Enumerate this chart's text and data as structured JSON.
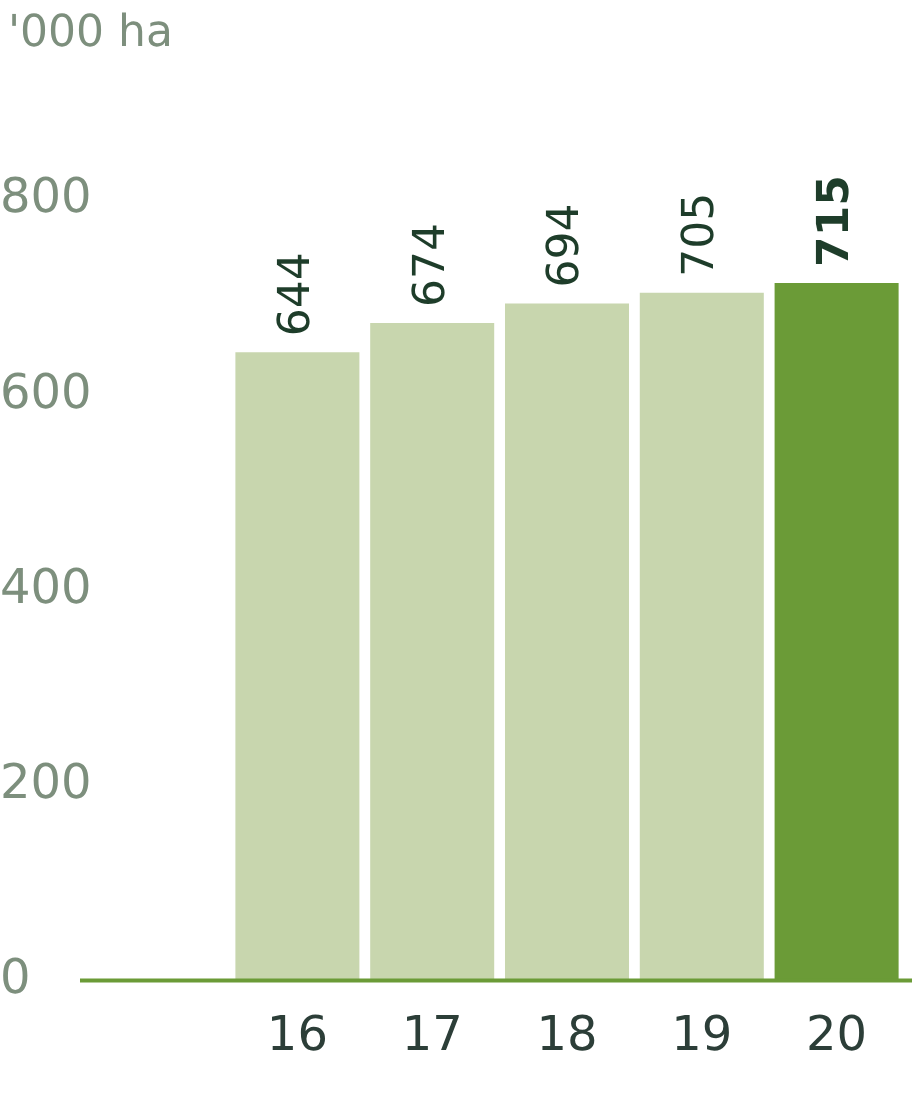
{
  "chart_data": {
    "type": "bar",
    "ylabel": "'000 ha",
    "categories": [
      "16",
      "17",
      "18",
      "19",
      "20"
    ],
    "values": [
      644,
      674,
      694,
      705,
      715
    ],
    "colors": [
      "#c8d6ae",
      "#c8d6ae",
      "#c8d6ae",
      "#c8d6ae",
      "#6b9b37"
    ],
    "ylim": [
      0,
      800
    ],
    "yticks": [
      0,
      200,
      400,
      600,
      800
    ],
    "grid": false,
    "legend": false,
    "data_labels": true
  }
}
